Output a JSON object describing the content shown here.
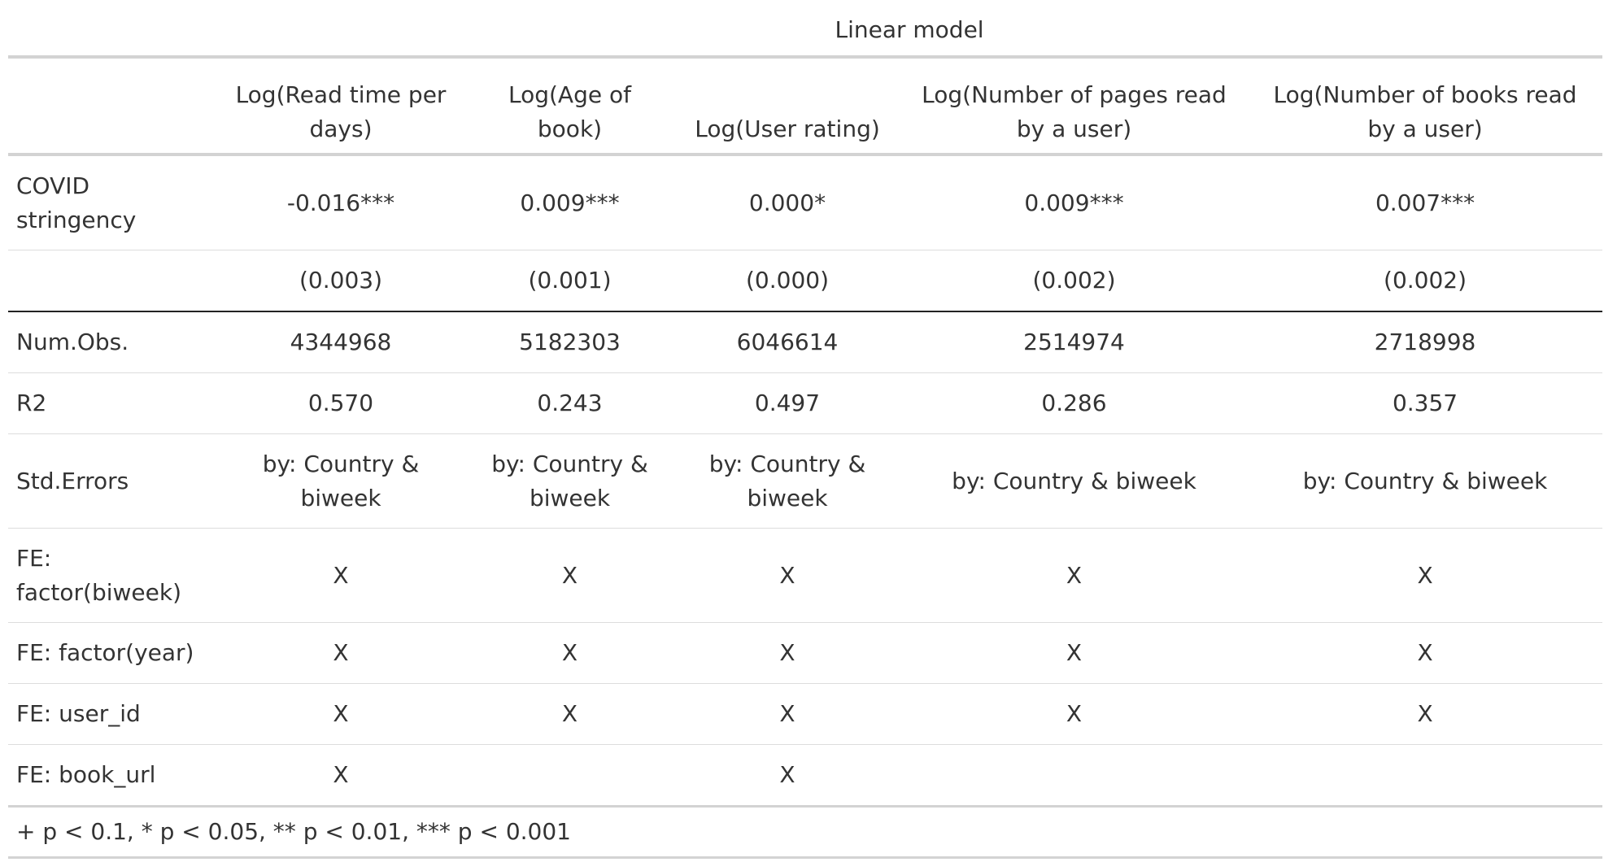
{
  "spanner": "Linear model",
  "headers": [
    "",
    "Log(Read time per days)",
    "Log(Age of book)",
    "Log(User rating)",
    "Log(Number of pages read by a user)",
    "Log(Number of books read by a user)"
  ],
  "rows": [
    {
      "label": "COVID stringency",
      "cells": [
        "-0.016***",
        "0.009***",
        "0.000*",
        "0.009***",
        "0.007***"
      ]
    },
    {
      "label": "",
      "cells": [
        "(0.003)",
        "(0.001)",
        "(0.000)",
        "(0.002)",
        "(0.002)"
      ]
    },
    {
      "label": "Num.Obs.",
      "cells": [
        "4344968",
        "5182303",
        "6046614",
        "2514974",
        "2718998"
      ]
    },
    {
      "label": "R2",
      "cells": [
        "0.570",
        "0.243",
        "0.497",
        "0.286",
        "0.357"
      ]
    },
    {
      "label": "Std.Errors",
      "cells": [
        "by: Country & biweek",
        "by: Country & biweek",
        "by: Country & biweek",
        "by: Country & biweek",
        "by: Country & biweek"
      ]
    },
    {
      "label": "FE: factor(biweek)",
      "cells": [
        "X",
        "X",
        "X",
        "X",
        "X"
      ]
    },
    {
      "label": "FE: factor(year)",
      "cells": [
        "X",
        "X",
        "X",
        "X",
        "X"
      ]
    },
    {
      "label": "FE: user_id",
      "cells": [
        "X",
        "X",
        "X",
        "X",
        "X"
      ]
    },
    {
      "label": "FE: book_url",
      "cells": [
        "X",
        "",
        "X",
        "",
        ""
      ]
    }
  ],
  "footnote": "+ p < 0.1, * p < 0.05, ** p < 0.01, *** p < 0.001"
}
